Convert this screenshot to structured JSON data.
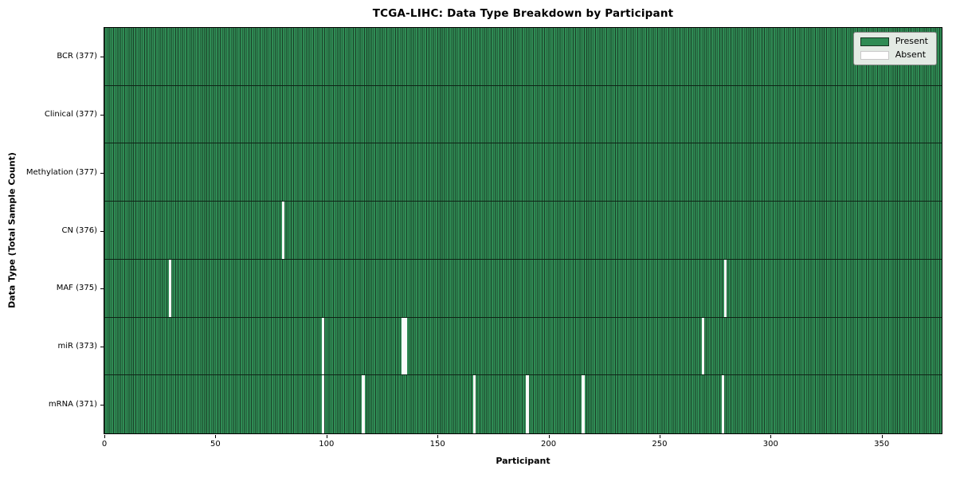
{
  "chart_data": {
    "type": "heatmap",
    "title": "TCGA-LIHC: Data Type Breakdown by Participant",
    "xlabel": "Participant",
    "ylabel": "Data Type (Total Sample Count)",
    "n_participants": 377,
    "xlim": [
      0,
      377
    ],
    "x_ticks": [
      0,
      50,
      100,
      150,
      200,
      250,
      300,
      350
    ],
    "legend": [
      "Present",
      "Absent"
    ],
    "legend_position": "upper right",
    "grid": "cell-edges",
    "colors": {
      "present": "#2f8b54",
      "absent": "#fbfbfb",
      "cell_edge": "#1b3f28",
      "row_border": "#0e2416"
    },
    "rows": [
      {
        "data_type": "BCR",
        "label": "BCR (377)",
        "present_count": 377,
        "absent_participants": []
      },
      {
        "data_type": "Clinical",
        "label": "Clinical (377)",
        "present_count": 377,
        "absent_participants": []
      },
      {
        "data_type": "Methylation",
        "label": "Methylation (377)",
        "present_count": 377,
        "absent_participants": []
      },
      {
        "data_type": "CN",
        "label": "CN (376)",
        "present_count": 376,
        "absent_participants": [
          80
        ]
      },
      {
        "data_type": "MAF",
        "label": "MAF (375)",
        "present_count": 375,
        "absent_participants": [
          29,
          279
        ]
      },
      {
        "data_type": "miR",
        "label": "miR (373)",
        "present_count": 373,
        "absent_participants": [
          98,
          134,
          135,
          269
        ]
      },
      {
        "data_type": "mRNA",
        "label": "mRNA (371)",
        "present_count": 371,
        "absent_participants": [
          98,
          116,
          166,
          190,
          215,
          278
        ]
      }
    ]
  }
}
